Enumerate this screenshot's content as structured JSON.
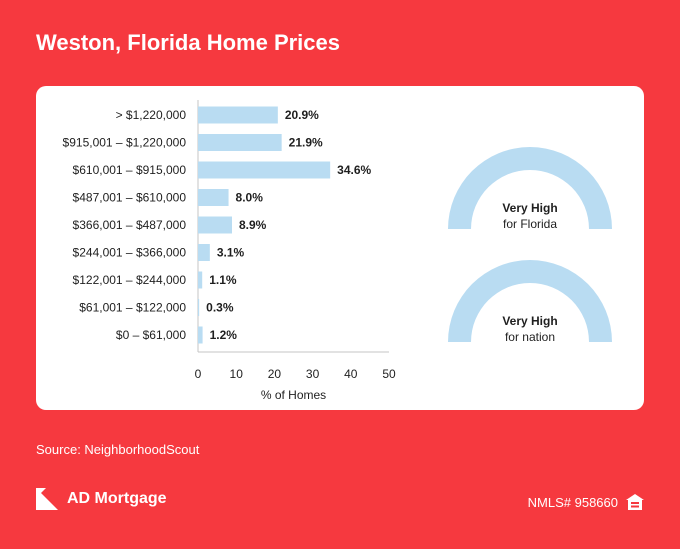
{
  "header": {
    "title": "Weston, Florida Home Prices"
  },
  "chart_data": {
    "type": "bar",
    "orientation": "horizontal",
    "categories": [
      "> $1,220,000",
      "$915,001 – $1,220,000",
      "$610,001 – $915,000",
      "$487,001 – $610,000",
      "$366,001 – $487,000",
      "$244,001 – $366,000",
      "$122,001 – $244,000",
      "$61,001 – $122,000",
      "$0 – $61,000"
    ],
    "values": [
      20.9,
      21.9,
      34.6,
      8.0,
      8.9,
      3.1,
      1.1,
      0.3,
      1.2
    ],
    "value_labels": [
      "20.9%",
      "21.9%",
      "34.6%",
      "8.0%",
      "8.9%",
      "3.1%",
      "1.1%",
      "0.3%",
      "1.2%"
    ],
    "xlabel": "% of Homes",
    "xlim": [
      0,
      50
    ],
    "xticks": [
      0,
      10,
      20,
      30,
      40,
      50
    ],
    "bar_color": "#b9dcf2",
    "grid": false
  },
  "gauges": [
    {
      "label": "Very High",
      "sublabel": "for Florida",
      "color": "#b9dcf2"
    },
    {
      "label": "Very High",
      "sublabel": "for nation",
      "color": "#b9dcf2"
    }
  ],
  "footer": {
    "source": "Source: NeighborhoodScout",
    "brand": "AD Mortgage",
    "nmls": "NMLS# 958660",
    "brand_icon": "ad-mortgage-logo-icon",
    "housing_icon": "equal-housing-icon"
  },
  "colors": {
    "background": "#f6393f",
    "card": "#ffffff",
    "text": "#1f1f1f"
  }
}
